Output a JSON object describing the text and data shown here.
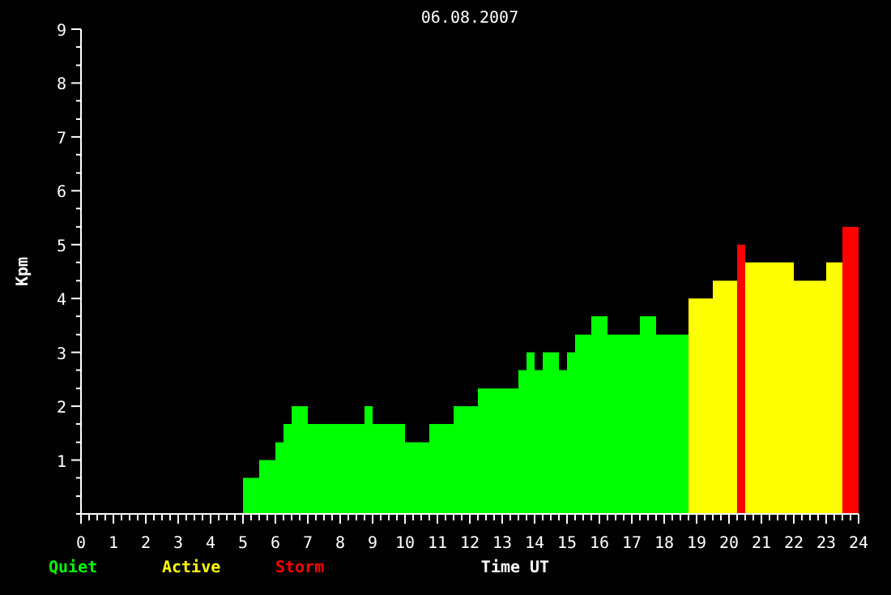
{
  "chart_data": {
    "type": "histogram",
    "title": "06.08.2007",
    "xlabel": "Time UT",
    "ylabel": "Kpm",
    "bins": [
      5,
      5.5,
      6,
      6.25,
      6.5,
      7,
      8.75,
      9,
      10,
      10.75,
      11.5,
      12.25,
      13.5,
      13.75,
      14,
      14.25,
      14.75,
      15,
      15.25,
      15.75,
      16.25,
      17.25,
      17.75,
      18.75,
      19.5,
      20.25,
      20.5,
      22,
      23,
      23.5,
      24
    ],
    "series": [
      {
        "name": "Quiet",
        "color": "#00ff00",
        "values": [
          0.67,
          1,
          1.33,
          1.67,
          2,
          1.67,
          2,
          1.67,
          1.33,
          1.67,
          2,
          2.33,
          2.67,
          3,
          2.67,
          3,
          2.67,
          3,
          3.33,
          3.67,
          3.33,
          3.67,
          3.33,
          null,
          null,
          null,
          null,
          null,
          null,
          null
        ]
      },
      {
        "name": "Active",
        "color": "#ffff00",
        "values": [
          null,
          null,
          null,
          null,
          null,
          null,
          null,
          null,
          null,
          null,
          null,
          null,
          null,
          null,
          null,
          null,
          null,
          null,
          null,
          null,
          null,
          null,
          null,
          4,
          4.33,
          null,
          4.67,
          4.33,
          4.67,
          null
        ]
      },
      {
        "name": "Storm",
        "color": "#ff0000",
        "values": [
          null,
          null,
          null,
          null,
          null,
          null,
          null,
          null,
          null,
          null,
          null,
          null,
          null,
          null,
          null,
          null,
          null,
          null,
          null,
          null,
          null,
          null,
          null,
          null,
          null,
          5,
          null,
          null,
          null,
          5.33
        ]
      }
    ],
    "xlim": [
      0,
      24
    ],
    "ylim": [
      0,
      9
    ],
    "xticks": [
      0,
      {
        "value": 0.25,
        "label": null
      },
      {
        "value": 0.5,
        "label": null
      },
      {
        "value": 0.75,
        "label": null
      },
      1,
      {
        "value": 1.25,
        "label": null
      },
      {
        "value": 1.5,
        "label": null
      },
      {
        "value": 1.75,
        "label": null
      },
      2,
      {
        "value": 2.25,
        "label": null
      },
      {
        "value": 2.5,
        "label": null
      },
      {
        "value": 2.75,
        "label": null
      },
      3,
      {
        "value": 3.25,
        "label": null
      },
      {
        "value": 3.5,
        "label": null
      },
      {
        "value": 3.75,
        "label": null
      },
      4,
      {
        "value": 4.25,
        "label": null
      },
      {
        "value": 4.5,
        "label": null
      },
      {
        "value": 4.75,
        "label": null
      },
      5,
      {
        "value": 5.25,
        "label": null
      },
      {
        "value": 5.5,
        "label": null
      },
      {
        "value": 5.75,
        "label": null
      },
      6,
      {
        "value": 6.25,
        "label": null
      },
      {
        "value": 6.5,
        "label": null
      },
      {
        "value": 6.75,
        "label": null
      },
      7,
      {
        "value": 7.25,
        "label": null
      },
      {
        "value": 7.5,
        "label": null
      },
      {
        "value": 7.75,
        "label": null
      },
      8,
      {
        "value": 8.25,
        "label": null
      },
      {
        "value": 8.5,
        "label": null
      },
      {
        "value": 8.75,
        "label": null
      },
      9,
      {
        "value": 9.25,
        "label": null
      },
      {
        "value": 9.5,
        "label": null
      },
      {
        "value": 9.75,
        "label": null
      },
      10,
      {
        "value": 10.25,
        "label": null
      },
      {
        "value": 10.5,
        "label": null
      },
      {
        "value": 10.75,
        "label": null
      },
      11,
      {
        "value": 11.25,
        "label": null
      },
      {
        "value": 11.5,
        "label": null
      },
      {
        "value": 11.75,
        "label": null
      },
      12,
      {
        "value": 12.25,
        "label": null
      },
      {
        "value": 12.5,
        "label": null
      },
      {
        "value": 12.75,
        "label": null
      },
      13,
      {
        "value": 13.25,
        "label": null
      },
      {
        "value": 13.5,
        "label": null
      },
      {
        "value": 13.75,
        "label": null
      },
      14,
      {
        "value": 14.25,
        "label": null
      },
      {
        "value": 14.5,
        "label": null
      },
      {
        "value": 14.75,
        "label": null
      },
      15,
      {
        "value": 15.25,
        "label": null
      },
      {
        "value": 15.5,
        "label": null
      },
      {
        "value": 15.75,
        "label": null
      },
      16,
      {
        "value": 16.25,
        "label": null
      },
      {
        "value": 16.5,
        "label": null
      },
      {
        "value": 16.75,
        "label": null
      },
      17,
      {
        "value": 17.25,
        "label": null
      },
      {
        "value": 17.5,
        "label": null
      },
      {
        "value": 17.75,
        "label": null
      },
      18,
      {
        "value": 18.25,
        "label": null
      },
      {
        "value": 18.5,
        "label": null
      },
      {
        "value": 18.75,
        "label": null
      },
      19,
      {
        "value": 19.25,
        "label": null
      },
      {
        "value": 19.5,
        "label": null
      },
      {
        "value": 19.75,
        "label": null
      },
      20,
      {
        "value": 20.25,
        "label": null
      },
      {
        "value": 20.5,
        "label": null
      },
      {
        "value": 20.75,
        "label": null
      },
      21,
      {
        "value": 21.25,
        "label": null
      },
      {
        "value": 21.5,
        "label": null
      },
      {
        "value": 21.75,
        "label": null
      },
      22,
      {
        "value": 22.25,
        "label": null
      },
      {
        "value": 22.5,
        "label": null
      },
      {
        "value": 22.75,
        "label": null
      },
      23,
      {
        "value": 23.25,
        "label": null
      },
      {
        "value": 23.5,
        "label": null
      },
      {
        "value": 23.75,
        "label": null
      },
      24
    ],
    "yticks": [
      {
        "value": 0,
        "label": null
      },
      {
        "value": 0.33,
        "label": null
      },
      {
        "value": 0.67,
        "label": null
      },
      1,
      {
        "value": 1.33,
        "label": null
      },
      {
        "value": 1.67,
        "label": null
      },
      2,
      {
        "value": 2.33,
        "label": null
      },
      {
        "value": 2.67,
        "label": null
      },
      3,
      {
        "value": 3.33,
        "label": null
      },
      {
        "value": 3.67,
        "label": null
      },
      4,
      {
        "value": 4.33,
        "label": null
      },
      {
        "value": 4.67,
        "label": null
      },
      5,
      {
        "value": 5.33,
        "label": null
      },
      {
        "value": 5.67,
        "label": null
      },
      6,
      {
        "value": 6.33,
        "label": null
      },
      {
        "value": 6.67,
        "label": null
      },
      7,
      {
        "value": 7.33,
        "label": null
      },
      {
        "value": 7.67,
        "label": null
      },
      8,
      {
        "value": 8.33,
        "label": null
      },
      {
        "value": 8.67,
        "label": null
      },
      9
    ],
    "grid": false,
    "legend": "bottom left"
  }
}
